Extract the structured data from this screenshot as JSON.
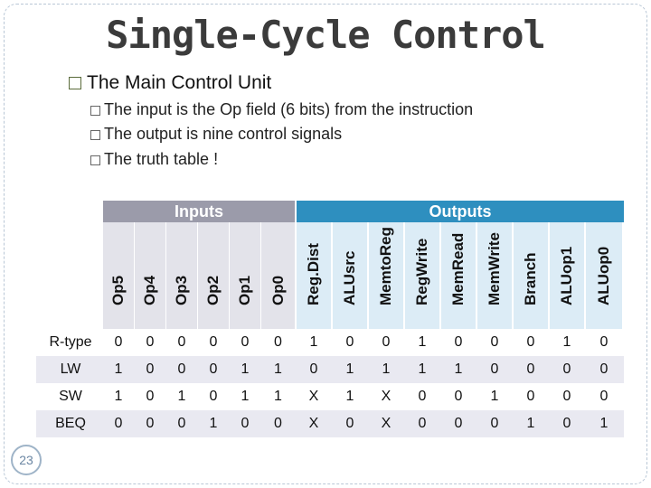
{
  "title": "Single-Cycle Control",
  "bullet_main": "The Main Control Unit",
  "sub_bullets": [
    "The input is the Op field (6 bits) from the  instruction",
    "The output is nine control signals",
    "The truth table !"
  ],
  "table": {
    "inputs_label": "Inputs",
    "outputs_label": "Outputs",
    "input_headers": [
      "Op5",
      "Op4",
      "Op3",
      "Op2",
      "Op1",
      "Op0"
    ],
    "output_headers": [
      "Reg.Dist",
      "ALUsrc",
      "MemtoReg",
      "RegWrite",
      "MemRead",
      "MemWrite",
      "Branch",
      "ALUop1",
      "ALUop0"
    ],
    "rows": [
      {
        "label": "R-type",
        "values": [
          "0",
          "0",
          "0",
          "0",
          "0",
          "0",
          "1",
          "0",
          "0",
          "1",
          "0",
          "0",
          "0",
          "1",
          "0"
        ]
      },
      {
        "label": "LW",
        "values": [
          "1",
          "0",
          "0",
          "0",
          "1",
          "1",
          "0",
          "1",
          "1",
          "1",
          "1",
          "0",
          "0",
          "0",
          "0"
        ]
      },
      {
        "label": "SW",
        "values": [
          "1",
          "0",
          "1",
          "0",
          "1",
          "1",
          "X",
          "1",
          "X",
          "0",
          "0",
          "1",
          "0",
          "0",
          "0"
        ]
      },
      {
        "label": "BEQ",
        "values": [
          "0",
          "0",
          "0",
          "1",
          "0",
          "0",
          "X",
          "0",
          "X",
          "0",
          "0",
          "0",
          "1",
          "0",
          "1"
        ]
      }
    ]
  },
  "page_number": "23"
}
